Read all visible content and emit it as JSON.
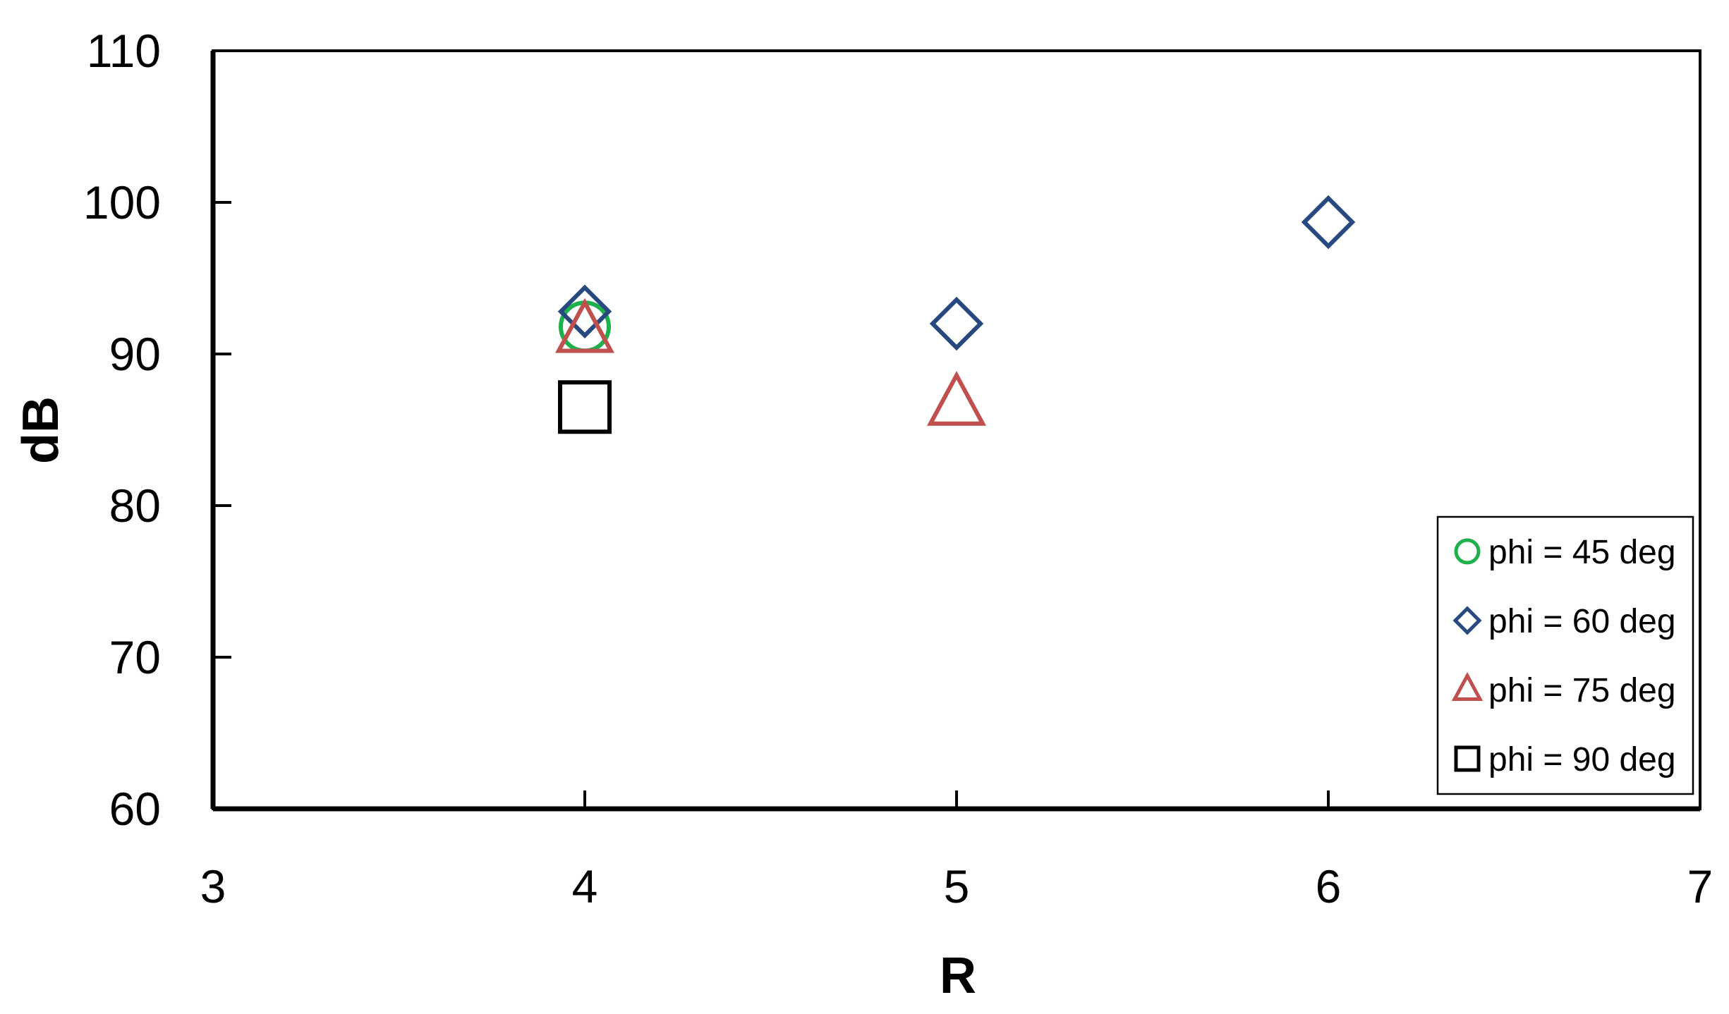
{
  "chart_data": {
    "type": "scatter",
    "title": "",
    "xlabel": "R",
    "ylabel": "dB",
    "xlim": [
      3,
      7
    ],
    "ylim": [
      60,
      110
    ],
    "x_ticks": [
      "3",
      "4",
      "5",
      "6",
      "7"
    ],
    "y_ticks": [
      "60",
      "70",
      "80",
      "90",
      "100",
      "110"
    ],
    "grid": false,
    "legend_position": "bottom-right",
    "series": [
      {
        "name": "phi = 45 deg",
        "marker": "circle",
        "color": "#1eb04a",
        "points": [
          {
            "x": 4,
            "y": 91.8
          }
        ]
      },
      {
        "name": "phi = 60 deg",
        "marker": "diamond",
        "color": "#27497f",
        "points": [
          {
            "x": 4,
            "y": 92.8
          },
          {
            "x": 5,
            "y": 92.0
          },
          {
            "x": 6,
            "y": 98.7
          }
        ]
      },
      {
        "name": "phi = 75 deg",
        "marker": "triangle",
        "color": "#c0504d",
        "points": [
          {
            "x": 4,
            "y": 91.5
          },
          {
            "x": 5,
            "y": 86.7
          }
        ]
      },
      {
        "name": "phi = 90 deg",
        "marker": "square",
        "color": "#000000",
        "points": [
          {
            "x": 4,
            "y": 86.5
          }
        ]
      }
    ]
  }
}
